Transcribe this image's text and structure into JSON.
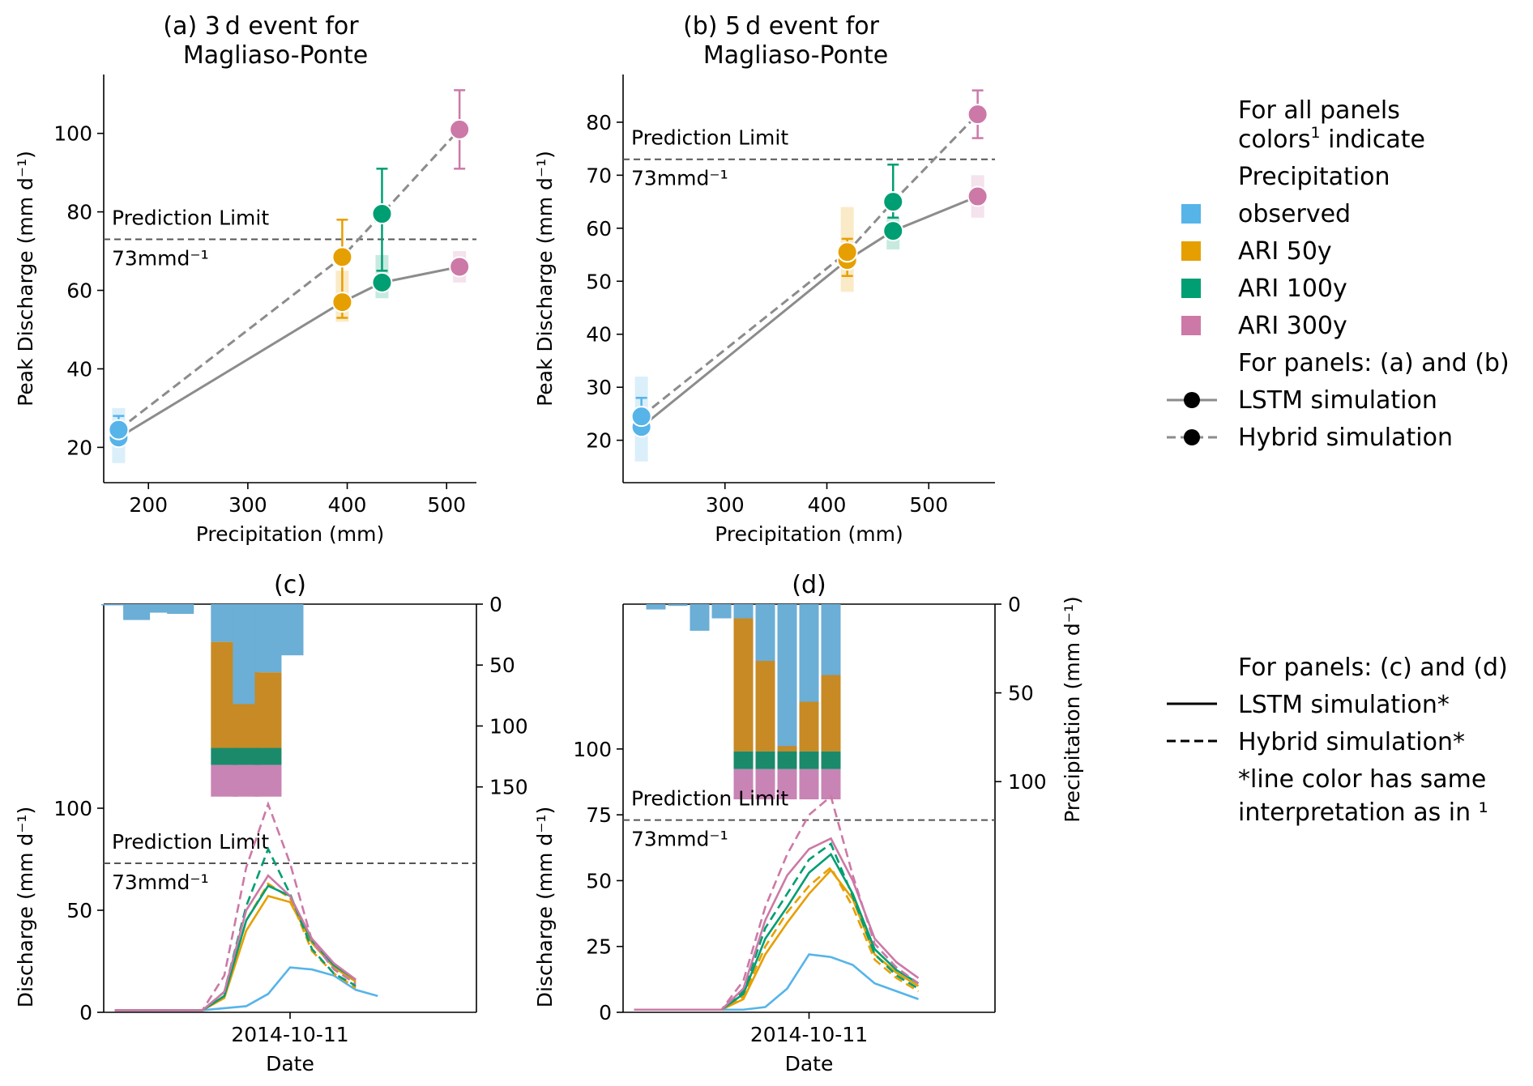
{
  "colors": {
    "observed": "#56b4e9",
    "ari50": "#e69f00",
    "ari100": "#009e73",
    "ari300": "#cc79a7",
    "sim_gray": "#8c8c8c",
    "bar_blue": "#6baed6",
    "bar_orange": "#c78a24",
    "bar_green": "#1b8a6b",
    "bar_pink": "#c884b4"
  },
  "chart_data": [
    {
      "panel": "a",
      "type": "scatter",
      "title_line1": "(a) 3 d event for",
      "title_line2": "Magliaso-Ponte",
      "xlabel": "Precipitation (mm)",
      "ylabel": "Peak Discharge (mm d⁻¹)",
      "xlim": [
        155,
        530
      ],
      "ylim": [
        11,
        115
      ],
      "xticks": [
        200,
        300,
        400,
        500
      ],
      "yticks": [
        20,
        40,
        60,
        80,
        100
      ],
      "limit_value": 73,
      "limit_label": "Prediction Limit",
      "limit_unit": "73mmd⁻¹",
      "points": [
        {
          "group": "observed",
          "x": 170,
          "lstm": 22.5,
          "hybrid": 24.5,
          "lstm_err": [
            16,
            30
          ],
          "hybrid_err": [
            21,
            28
          ]
        },
        {
          "group": "ari50",
          "x": 395,
          "lstm": 57,
          "hybrid": 68.5,
          "lstm_err": [
            52,
            65
          ],
          "hybrid_err": [
            53,
            78
          ]
        },
        {
          "group": "ari100",
          "x": 435,
          "lstm": 62,
          "hybrid": 79.5,
          "lstm_err": [
            58,
            69
          ],
          "hybrid_err": [
            65,
            91
          ]
        },
        {
          "group": "ari300",
          "x": 513,
          "lstm": 66,
          "hybrid": 101,
          "lstm_err": [
            62,
            70
          ],
          "hybrid_err": [
            91,
            111
          ]
        }
      ]
    },
    {
      "panel": "b",
      "type": "scatter",
      "title_line1": "(b) 5 d event for",
      "title_line2": "Magliaso-Ponte",
      "xlabel": "Precipitation (mm)",
      "ylabel": "Peak Discharge (mm d⁻¹)",
      "xlim": [
        200,
        565
      ],
      "ylim": [
        12,
        89
      ],
      "xticks": [
        300,
        400,
        500
      ],
      "yticks": [
        20,
        30,
        40,
        50,
        60,
        70,
        80
      ],
      "limit_value": 73,
      "limit_label": "Prediction Limit",
      "limit_unit": "73mmd⁻¹",
      "points": [
        {
          "group": "observed",
          "x": 218,
          "lstm": 22.5,
          "hybrid": 24.5,
          "lstm_err": [
            16,
            32
          ],
          "hybrid_err": [
            21,
            28
          ]
        },
        {
          "group": "ari50",
          "x": 420,
          "lstm": 54,
          "hybrid": 55.5,
          "lstm_err": [
            48,
            64
          ],
          "hybrid_err": [
            51,
            58
          ]
        },
        {
          "group": "ari100",
          "x": 465,
          "lstm": 59.5,
          "hybrid": 65,
          "lstm_err": [
            56,
            62
          ],
          "hybrid_err": [
            62,
            72
          ]
        },
        {
          "group": "ari300",
          "x": 548,
          "lstm": 66,
          "hybrid": 81.5,
          "lstm_err": [
            62,
            70
          ],
          "hybrid_err": [
            77,
            86
          ]
        }
      ]
    },
    {
      "panel": "c",
      "type": "line",
      "title": "(c)",
      "xlabel": "Date",
      "ylabel": "Discharge (mm d⁻¹)",
      "y2label": "Precipitation (mm d⁻¹)",
      "xtick_label": "2014-10-11",
      "xtick_index": 8,
      "xlim": [
        -0.5,
        16.5
      ],
      "ylim": [
        0,
        200
      ],
      "yticks": [
        0,
        50,
        100
      ],
      "y2ticks": [
        0,
        50,
        100,
        150
      ],
      "y2lim_top": 0,
      "y2lim_bottom": 335,
      "limit_value": 73,
      "limit_label": "Prediction Limit",
      "limit_unit": "73mmd⁻¹",
      "bars": {
        "observed": [
          1,
          13,
          7,
          8,
          0,
          0,
          0,
          0,
          0,
          0,
          0,
          0,
          0
        ],
        "ari_start": 5,
        "ari_obs": [
          31,
          85,
          56
        ],
        "ari50_top": [
          31,
          82,
          56
        ],
        "ari50_bottom": [
          118,
          118,
          118
        ],
        "ari100_bottom": [
          132,
          132,
          132
        ],
        "ari300_bottom": [
          158,
          158,
          158
        ],
        "after_observed": [
          {
            "index": 8,
            "value": 42
          },
          {
            "index": 9,
            "value": 0
          }
        ]
      },
      "series": [
        {
          "group": "observed",
          "style": "solid",
          "values": [
            1,
            1,
            1,
            1,
            1,
            2,
            3,
            9,
            22,
            21,
            18,
            11,
            8
          ]
        },
        {
          "group": "ari50",
          "style": "solid",
          "values": [
            1,
            1,
            1,
            1,
            1,
            7,
            40,
            57,
            54,
            34,
            22,
            15
          ]
        },
        {
          "group": "ari50",
          "style": "dashed",
          "values": [
            1,
            1,
            1,
            1,
            1,
            8,
            45,
            63,
            56,
            30,
            19,
            12
          ]
        },
        {
          "group": "ari100",
          "style": "solid",
          "values": [
            1,
            1,
            1,
            1,
            1,
            8,
            45,
            62,
            57,
            35,
            23,
            16
          ]
        },
        {
          "group": "ari100",
          "style": "dashed",
          "values": [
            1,
            1,
            1,
            1,
            1,
            10,
            52,
            80,
            58,
            31,
            19,
            13
          ]
        },
        {
          "group": "ari300",
          "style": "solid",
          "values": [
            1,
            1,
            1,
            1,
            1,
            10,
            50,
            67,
            57,
            36,
            24,
            16
          ]
        },
        {
          "group": "ari300",
          "style": "dashed",
          "values": [
            1,
            1,
            1,
            1,
            1,
            18,
            71,
            102,
            73,
            35,
            21,
            14
          ]
        }
      ]
    },
    {
      "panel": "d",
      "type": "line",
      "title": "(d)",
      "xlabel": "Date",
      "ylabel": "Discharge (mm d⁻¹)",
      "y2label": "Precipitation (mm d⁻¹)",
      "xtick_label": "2014-10-11",
      "xtick_index": 8,
      "limit_value": 73,
      "limit_label": "Prediction Limit",
      "limit_unit": "73mmd⁻¹",
      "yticks": [
        0,
        25,
        50,
        75,
        100
      ],
      "y2ticks": [
        0,
        50,
        100
      ],
      "bars": {
        "observed": [
          3,
          1,
          15,
          8,
          8,
          80,
          83,
          82,
          42
        ],
        "ari50": [
          8,
          32,
          80,
          55,
          40
        ],
        "green_range": [
          83,
          93
        ],
        "pink_range": [
          93,
          110
        ]
      },
      "series": [
        {
          "group": "observed",
          "style": "solid",
          "values": [
            1,
            1,
            1,
            1,
            1,
            1,
            2,
            9,
            22,
            21,
            18,
            11,
            8,
            5
          ]
        },
        {
          "group": "ari50",
          "style": "solid",
          "values": [
            1,
            1,
            1,
            1,
            1,
            5,
            22,
            34,
            45,
            54,
            43,
            22,
            15,
            10
          ]
        },
        {
          "group": "ari50",
          "style": "dashed",
          "values": [
            1,
            1,
            1,
            1,
            1,
            6,
            25,
            38,
            48,
            55,
            40,
            20,
            13,
            8
          ]
        },
        {
          "group": "ari100",
          "style": "solid",
          "values": [
            1,
            1,
            1,
            1,
            1,
            7,
            28,
            40,
            53,
            60,
            45,
            24,
            16,
            11
          ]
        },
        {
          "group": "ari100",
          "style": "dashed",
          "values": [
            1,
            1,
            1,
            1,
            1,
            8,
            32,
            45,
            58,
            64,
            44,
            22,
            14,
            9
          ]
        },
        {
          "group": "ari300",
          "style": "solid",
          "values": [
            1,
            1,
            1,
            1,
            1,
            9,
            35,
            52,
            62,
            66,
            50,
            28,
            19,
            13
          ]
        },
        {
          "group": "ari300",
          "style": "dashed",
          "values": [
            1,
            1,
            1,
            1,
            1,
            12,
            40,
            60,
            75,
            82,
            52,
            26,
            17,
            11
          ]
        }
      ]
    }
  ],
  "legend_top": {
    "heading_line1": "For all panels",
    "heading_line2_text": "colors",
    "heading_line2_sup": "1",
    "heading_line2_rest": " indicate",
    "group_title": "Precipitation",
    "items": [
      {
        "group": "observed",
        "label": "observed"
      },
      {
        "group": "ari50",
        "label": "ARI 50y"
      },
      {
        "group": "ari100",
        "label": "ARI 100y"
      },
      {
        "group": "ari300",
        "label": "ARI 300y"
      }
    ],
    "sub_title": "For panels: (a) and (b)",
    "lstm_label": "LSTM simulation",
    "hybrid_label": "Hybrid simulation"
  },
  "legend_bottom": {
    "title": "For panels: (c) and (d)",
    "lstm_label": "LSTM simulation*",
    "hybrid_label": "Hybrid simulation*",
    "note_line1": "*line color has same",
    "note_line2": "interpretation as in ¹"
  }
}
